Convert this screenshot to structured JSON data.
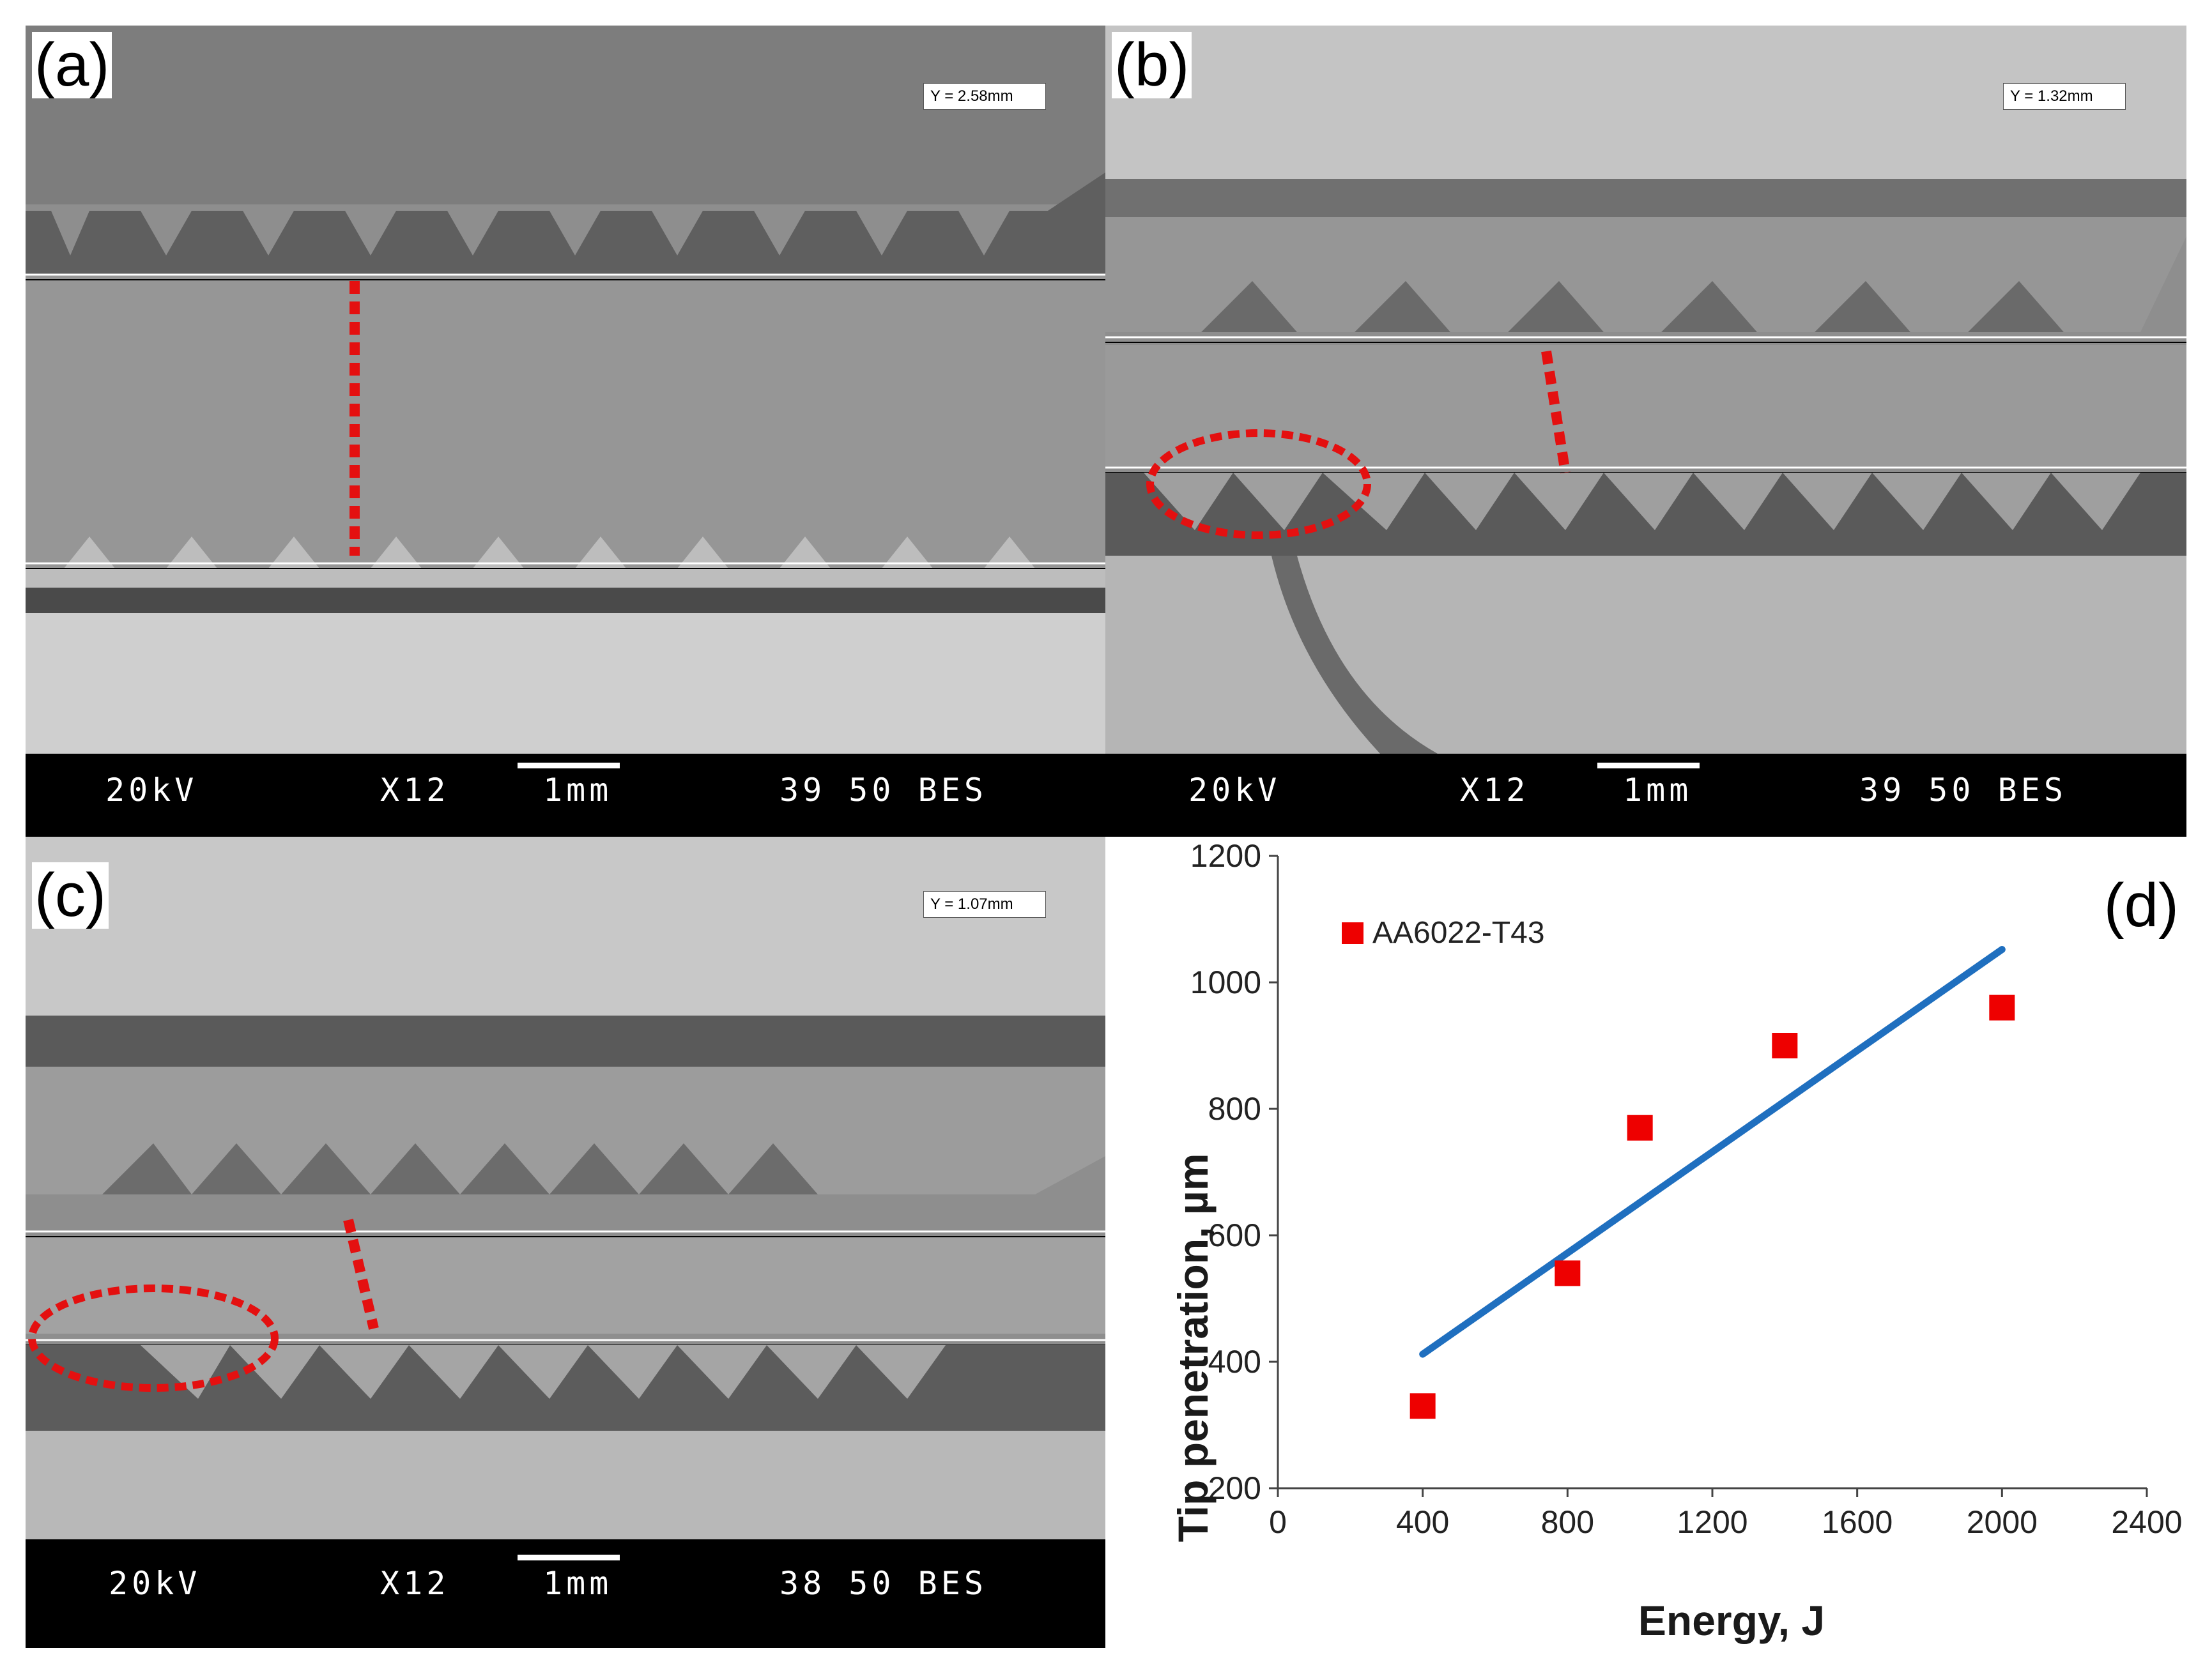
{
  "panels": {
    "a": {
      "label": "(a)",
      "y_readout": "Y = 2.58mm",
      "sem": {
        "kv": "20kV",
        "mag": "X12",
        "scale": "1mm",
        "info": "39 50 BES"
      }
    },
    "b": {
      "label": "(b)",
      "y_readout": "Y = 1.32mm",
      "sem": {
        "kv": "20kV",
        "mag": "X12",
        "scale": "1mm",
        "info": "39 50 BES"
      }
    },
    "c": {
      "label": "(c)",
      "y_readout": "Y = 1.07mm",
      "sem": {
        "kv": "20kV",
        "mag": "X12",
        "scale": "1mm",
        "info": "38 50 BES"
      }
    },
    "d": {
      "label": "(d)"
    }
  },
  "colors": {
    "marker": "#ee0000",
    "trendline": "#1f6fbf",
    "annotation": "#e41010"
  },
  "chart_data": {
    "type": "scatter",
    "xlabel": "Energy, J",
    "ylabel": "Tip penetration, µm",
    "xlim": [
      0,
      2400
    ],
    "ylim": [
      200,
      1200
    ],
    "xticks": [
      0,
      400,
      800,
      1200,
      1600,
      2000,
      2400
    ],
    "yticks": [
      200,
      400,
      600,
      800,
      1000,
      1200
    ],
    "legend": "top-left",
    "series": [
      {
        "name": "AA6022-T43",
        "x": [
          400,
          800,
          1000,
          1400,
          2000
        ],
        "y": [
          330,
          540,
          770,
          900,
          960
        ]
      }
    ],
    "trendline": {
      "x": [
        400,
        2000
      ],
      "y": [
        412,
        1052
      ]
    }
  }
}
